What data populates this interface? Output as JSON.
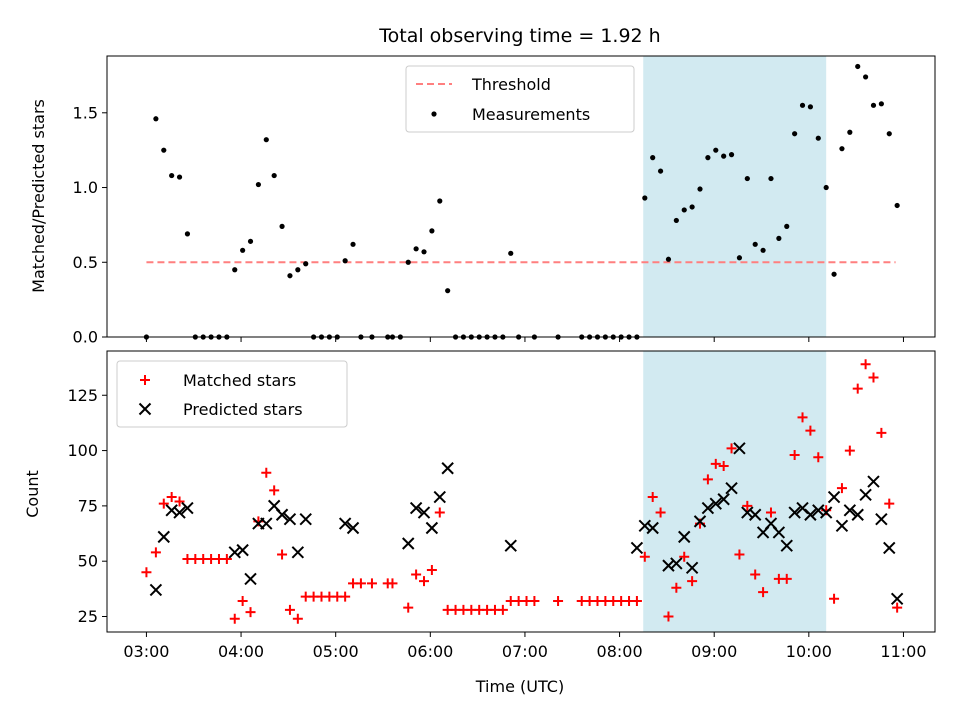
{
  "chart_data": [
    {
      "type": "scatter",
      "title": "Total observing time = 1.92 h",
      "xlabel": "",
      "ylabel": "Matched/Predicted stars",
      "ylim": [
        0,
        1.88
      ],
      "yticks": [
        "0.0",
        "0.5",
        "1.0",
        "1.5"
      ],
      "ytick_values": [
        0,
        0.5,
        1.0,
        1.5
      ],
      "highlight": {
        "x_start": "08:15",
        "x_end": "10:11",
        "color": "#add8e6"
      },
      "threshold": {
        "name": "Threshold",
        "value": 0.5,
        "x_start": "03:00",
        "x_end": "10:55",
        "color": "#ff7f7f"
      },
      "legend": {
        "placement": "top-center",
        "entries": [
          "Threshold",
          "Measurements"
        ]
      },
      "series": [
        {
          "name": "Measurements",
          "color": "#000000",
          "points": [
            [
              "03:00",
              0.0
            ],
            [
              "03:06",
              1.46
            ],
            [
              "03:11",
              1.25
            ],
            [
              "03:16",
              1.08
            ],
            [
              "03:21",
              1.07
            ],
            [
              "03:26",
              0.69
            ],
            [
              "03:31",
              0.0
            ],
            [
              "03:36",
              0.0
            ],
            [
              "03:41",
              0.0
            ],
            [
              "03:46",
              0.0
            ],
            [
              "03:51",
              0.0
            ],
            [
              "03:56",
              0.45
            ],
            [
              "04:01",
              0.58
            ],
            [
              "04:06",
              0.64
            ],
            [
              "04:11",
              1.02
            ],
            [
              "04:16",
              1.32
            ],
            [
              "04:21",
              1.08
            ],
            [
              "04:26",
              0.74
            ],
            [
              "04:31",
              0.41
            ],
            [
              "04:36",
              0.45
            ],
            [
              "04:41",
              0.49
            ],
            [
              "04:46",
              0.0
            ],
            [
              "04:51",
              0.0
            ],
            [
              "04:56",
              0.0
            ],
            [
              "05:01",
              0.0
            ],
            [
              "05:06",
              0.51
            ],
            [
              "05:11",
              0.62
            ],
            [
              "05:16",
              0.0
            ],
            [
              "05:23",
              0.0
            ],
            [
              "05:33",
              0.0
            ],
            [
              "05:36",
              0.0
            ],
            [
              "05:41",
              0.0
            ],
            [
              "05:46",
              0.5
            ],
            [
              "05:51",
              0.59
            ],
            [
              "05:56",
              0.57
            ],
            [
              "06:01",
              0.71
            ],
            [
              "06:06",
              0.91
            ],
            [
              "06:11",
              0.31
            ],
            [
              "06:16",
              0.0
            ],
            [
              "06:21",
              0.0
            ],
            [
              "06:26",
              0.0
            ],
            [
              "06:31",
              0.0
            ],
            [
              "06:36",
              0.0
            ],
            [
              "06:41",
              0.0
            ],
            [
              "06:46",
              0.0
            ],
            [
              "06:51",
              0.56
            ],
            [
              "06:56",
              0.0
            ],
            [
              "07:06",
              0.0
            ],
            [
              "07:21",
              0.0
            ],
            [
              "07:36",
              0.0
            ],
            [
              "07:41",
              0.0
            ],
            [
              "07:46",
              0.0
            ],
            [
              "07:51",
              0.0
            ],
            [
              "07:56",
              0.0
            ],
            [
              "08:01",
              0.0
            ],
            [
              "08:06",
              0.0
            ],
            [
              "08:11",
              0.0
            ],
            [
              "08:16",
              0.93
            ],
            [
              "08:21",
              1.2
            ],
            [
              "08:26",
              1.11
            ],
            [
              "08:31",
              0.52
            ],
            [
              "08:36",
              0.78
            ],
            [
              "08:41",
              0.85
            ],
            [
              "08:46",
              0.87
            ],
            [
              "08:51",
              0.99
            ],
            [
              "08:56",
              1.2
            ],
            [
              "09:01",
              1.25
            ],
            [
              "09:06",
              1.21
            ],
            [
              "09:11",
              1.22
            ],
            [
              "09:16",
              0.53
            ],
            [
              "09:21",
              1.06
            ],
            [
              "09:26",
              0.62
            ],
            [
              "09:31",
              0.58
            ],
            [
              "09:36",
              1.06
            ],
            [
              "09:41",
              0.66
            ],
            [
              "09:46",
              0.74
            ],
            [
              "09:51",
              1.36
            ],
            [
              "09:56",
              1.55
            ],
            [
              "10:01",
              1.54
            ],
            [
              "10:06",
              1.33
            ],
            [
              "10:11",
              1.0
            ],
            [
              "10:16",
              0.42
            ],
            [
              "10:21",
              1.26
            ],
            [
              "10:26",
              1.37
            ],
            [
              "10:31",
              1.81
            ],
            [
              "10:36",
              1.74
            ],
            [
              "10:41",
              1.55
            ],
            [
              "10:46",
              1.56
            ],
            [
              "10:51",
              1.36
            ],
            [
              "10:56",
              0.88
            ]
          ]
        }
      ]
    },
    {
      "type": "scatter",
      "title": "",
      "xlabel": "Time (UTC)",
      "ylabel": "Count",
      "xlim": [
        "02:35",
        "11:20"
      ],
      "xticks": [
        "03:00",
        "04:00",
        "05:00",
        "06:00",
        "07:00",
        "08:00",
        "09:00",
        "10:00",
        "11:00"
      ],
      "ylim": [
        18,
        145
      ],
      "yticks": [
        "25",
        "50",
        "75",
        "100",
        "125"
      ],
      "ytick_values": [
        25,
        50,
        75,
        100,
        125
      ],
      "highlight": {
        "x_start": "08:15",
        "x_end": "10:11",
        "color": "#add8e6"
      },
      "legend": {
        "placement": "top-left",
        "entries": [
          "Matched stars",
          "Predicted stars"
        ]
      },
      "series": [
        {
          "name": "Matched stars",
          "color": "#ff0000",
          "marker": "+",
          "points": [
            [
              "03:00",
              45
            ],
            [
              "03:06",
              54
            ],
            [
              "03:11",
              76
            ],
            [
              "03:16",
              79
            ],
            [
              "03:21",
              77
            ],
            [
              "03:26",
              51
            ],
            [
              "03:31",
              51
            ],
            [
              "03:36",
              51
            ],
            [
              "03:41",
              51
            ],
            [
              "03:46",
              51
            ],
            [
              "03:51",
              51
            ],
            [
              "03:56",
              24
            ],
            [
              "04:01",
              32
            ],
            [
              "04:06",
              27
            ],
            [
              "04:11",
              68
            ],
            [
              "04:16",
              90
            ],
            [
              "04:21",
              82
            ],
            [
              "04:26",
              53
            ],
            [
              "04:31",
              28
            ],
            [
              "04:36",
              24
            ],
            [
              "04:41",
              34
            ],
            [
              "04:46",
              34
            ],
            [
              "04:51",
              34
            ],
            [
              "04:56",
              34
            ],
            [
              "05:01",
              34
            ],
            [
              "05:06",
              34
            ],
            [
              "05:11",
              40
            ],
            [
              "05:16",
              40
            ],
            [
              "05:23",
              40
            ],
            [
              "05:33",
              40
            ],
            [
              "05:36",
              40
            ],
            [
              "05:46",
              29
            ],
            [
              "05:51",
              44
            ],
            [
              "05:56",
              41
            ],
            [
              "06:01",
              46
            ],
            [
              "06:06",
              72
            ],
            [
              "06:11",
              28
            ],
            [
              "06:16",
              28
            ],
            [
              "06:21",
              28
            ],
            [
              "06:26",
              28
            ],
            [
              "06:31",
              28
            ],
            [
              "06:36",
              28
            ],
            [
              "06:41",
              28
            ],
            [
              "06:46",
              28
            ],
            [
              "06:51",
              32
            ],
            [
              "06:56",
              32
            ],
            [
              "07:01",
              32
            ],
            [
              "07:06",
              32
            ],
            [
              "07:21",
              32
            ],
            [
              "07:36",
              32
            ],
            [
              "07:41",
              32
            ],
            [
              "07:46",
              32
            ],
            [
              "07:51",
              32
            ],
            [
              "07:56",
              32
            ],
            [
              "08:01",
              32
            ],
            [
              "08:06",
              32
            ],
            [
              "08:11",
              32
            ],
            [
              "08:16",
              52
            ],
            [
              "08:21",
              79
            ],
            [
              "08:26",
              72
            ],
            [
              "08:31",
              25
            ],
            [
              "08:36",
              38
            ],
            [
              "08:41",
              52
            ],
            [
              "08:46",
              41
            ],
            [
              "08:51",
              67
            ],
            [
              "08:56",
              87
            ],
            [
              "09:01",
              94
            ],
            [
              "09:06",
              93
            ],
            [
              "09:11",
              101
            ],
            [
              "09:16",
              53
            ],
            [
              "09:21",
              75
            ],
            [
              "09:26",
              44
            ],
            [
              "09:31",
              36
            ],
            [
              "09:36",
              72
            ],
            [
              "09:41",
              42
            ],
            [
              "09:46",
              42
            ],
            [
              "09:51",
              98
            ],
            [
              "09:56",
              115
            ],
            [
              "10:01",
              109
            ],
            [
              "10:06",
              97
            ],
            [
              "10:11",
              73
            ],
            [
              "10:16",
              33
            ],
            [
              "10:21",
              83
            ],
            [
              "10:26",
              100
            ],
            [
              "10:31",
              128
            ],
            [
              "10:36",
              139
            ],
            [
              "10:41",
              133
            ],
            [
              "10:46",
              108
            ],
            [
              "10:51",
              76
            ],
            [
              "10:56",
              29
            ]
          ]
        },
        {
          "name": "Predicted stars",
          "color": "#000000",
          "marker": "x",
          "points": [
            [
              "03:06",
              37
            ],
            [
              "03:11",
              61
            ],
            [
              "03:16",
              73
            ],
            [
              "03:21",
              72
            ],
            [
              "03:26",
              74
            ],
            [
              "03:56",
              54
            ],
            [
              "04:01",
              55
            ],
            [
              "04:06",
              42
            ],
            [
              "04:11",
              67
            ],
            [
              "04:16",
              67
            ],
            [
              "04:21",
              75
            ],
            [
              "04:26",
              71
            ],
            [
              "04:31",
              69
            ],
            [
              "04:36",
              54
            ],
            [
              "04:41",
              69
            ],
            [
              "05:06",
              67
            ],
            [
              "05:11",
              65
            ],
            [
              "05:46",
              58
            ],
            [
              "05:51",
              74
            ],
            [
              "05:56",
              72
            ],
            [
              "06:01",
              65
            ],
            [
              "06:06",
              79
            ],
            [
              "06:11",
              92
            ],
            [
              "06:51",
              57
            ],
            [
              "08:11",
              56
            ],
            [
              "08:16",
              66
            ],
            [
              "08:21",
              65
            ],
            [
              "08:31",
              48
            ],
            [
              "08:36",
              49
            ],
            [
              "08:41",
              61
            ],
            [
              "08:46",
              47
            ],
            [
              "08:51",
              68
            ],
            [
              "08:56",
              74
            ],
            [
              "09:01",
              76
            ],
            [
              "09:06",
              78
            ],
            [
              "09:11",
              83
            ],
            [
              "09:16",
              101
            ],
            [
              "09:21",
              72
            ],
            [
              "09:26",
              71
            ],
            [
              "09:31",
              63
            ],
            [
              "09:36",
              67
            ],
            [
              "09:41",
              63
            ],
            [
              "09:46",
              57
            ],
            [
              "09:51",
              72
            ],
            [
              "09:56",
              74
            ],
            [
              "10:01",
              71
            ],
            [
              "10:06",
              73
            ],
            [
              "10:11",
              72
            ],
            [
              "10:16",
              79
            ],
            [
              "10:21",
              66
            ],
            [
              "10:26",
              73
            ],
            [
              "10:31",
              71
            ],
            [
              "10:36",
              80
            ],
            [
              "10:41",
              86
            ],
            [
              "10:46",
              69
            ],
            [
              "10:51",
              56
            ],
            [
              "10:56",
              33
            ]
          ]
        }
      ]
    }
  ]
}
